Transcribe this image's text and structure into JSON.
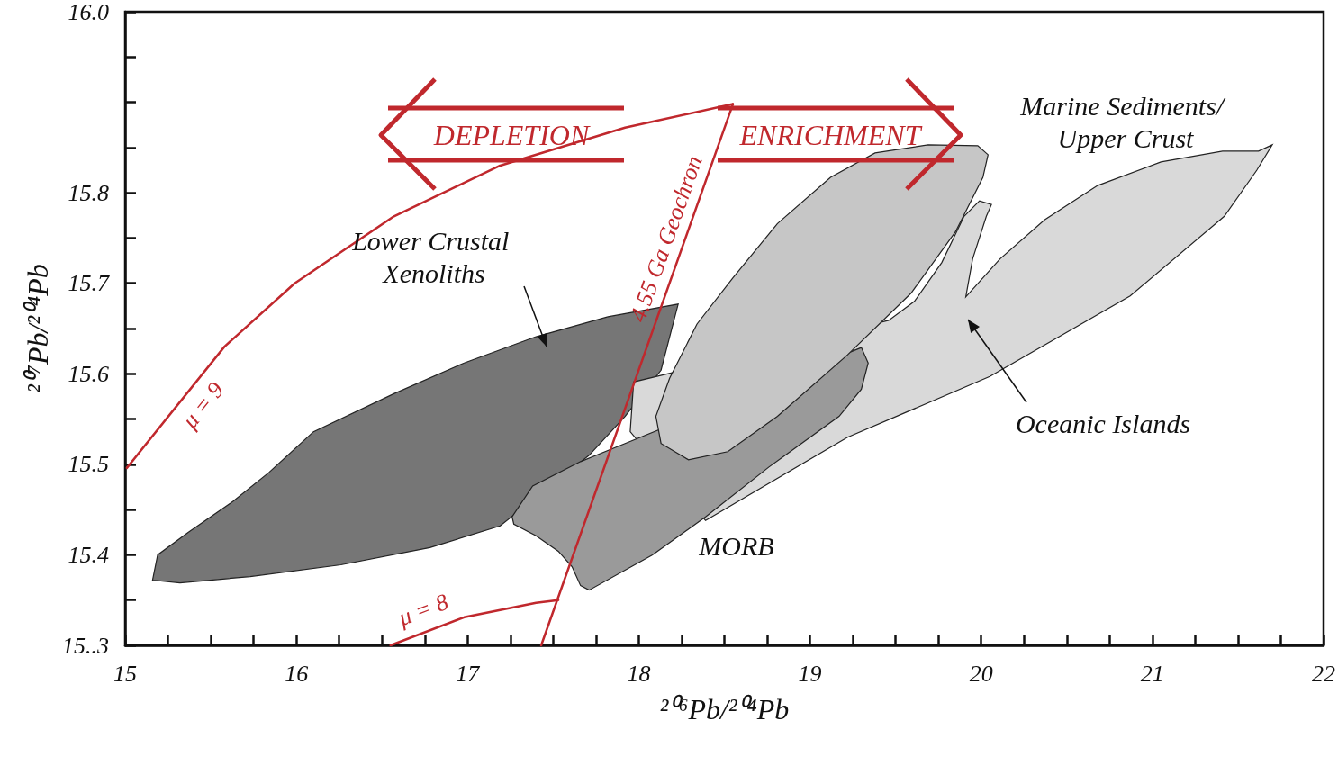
{
  "chart_data": {
    "type": "area",
    "xlabel": "²⁰⁶Pb/²⁰⁴Pb",
    "ylabel": "²⁰⁷Pb/²⁰⁴Pb",
    "xlim": [
      15,
      22
    ],
    "ylim": [
      15.3,
      16.0
    ],
    "xticks": [
      15,
      {
        "value": 15.25,
        "label": null
      },
      {
        "value": 15.5,
        "label": null
      },
      {
        "value": 15.75,
        "label": null
      },
      16,
      {
        "value": 16.25,
        "label": null
      },
      {
        "value": 16.5,
        "label": null
      },
      {
        "value": 16.75,
        "label": null
      },
      17,
      {
        "value": 17.25,
        "label": null
      },
      {
        "value": 17.5,
        "label": null
      },
      {
        "value": 17.75,
        "label": null
      },
      18,
      {
        "value": 18.25,
        "label": null
      },
      {
        "value": 18.5,
        "label": null
      },
      {
        "value": 18.75,
        "label": null
      },
      19,
      {
        "value": 19.25,
        "label": null
      },
      {
        "value": 19.5,
        "label": null
      },
      {
        "value": 19.75,
        "label": null
      },
      20,
      {
        "value": 20.25,
        "label": null
      },
      {
        "value": 20.5,
        "label": null
      },
      {
        "value": 20.75,
        "label": null
      },
      21,
      {
        "value": 21.25,
        "label": null
      },
      {
        "value": 21.5,
        "label": null
      },
      {
        "value": 21.75,
        "label": null
      },
      22
    ],
    "yticks": [
      {
        "value": 15.3,
        "label": "15..3"
      },
      {
        "value": 15.35,
        "label": null
      },
      15.4,
      {
        "value": 15.45,
        "label": null
      },
      15.5,
      {
        "value": 15.55,
        "label": null
      },
      15.6,
      {
        "value": 15.65,
        "label": null
      },
      15.7,
      {
        "value": 15.75,
        "label": null
      },
      15.8,
      {
        "value": 15.85,
        "label": null
      },
      {
        "value": 15.9,
        "label": null
      },
      {
        "value": 15.95,
        "label": null
      },
      {
        "value": 16.0,
        "label": "16.0"
      }
    ],
    "annotations": [
      "DEPLETION",
      "ENRICHMENT"
    ],
    "series": [
      {
        "name": "Lower Crustal Xenoliths",
        "color": "#767676",
        "x": [
          15.16,
          15.19,
          15.37,
          15.63,
          15.84,
          16.1,
          16.57,
          16.98,
          17.4,
          17.82,
          18.23,
          18.13,
          17.92,
          17.71,
          17.19,
          16.78,
          16.26,
          15.73,
          15.32
        ],
        "values": [
          15.372,
          15.4,
          15.425,
          15.459,
          15.491,
          15.536,
          15.578,
          15.612,
          15.641,
          15.663,
          15.677,
          15.604,
          15.553,
          15.51,
          15.432,
          15.408,
          15.389,
          15.376,
          15.369
        ]
      },
      {
        "name": "Oceanic Islands",
        "color": "#d9d9d9",
        "x": [
          21.7,
          21.62,
          21.41,
          21.05,
          20.68,
          20.37,
          20.11,
          19.91,
          19.95,
          20.03,
          20.06,
          19.99,
          19.9,
          19.77,
          19.61,
          19.46,
          17.97,
          17.95,
          18.39,
          19.22,
          20.05,
          20.87,
          21.42,
          21.61
        ],
        "values": [
          15.853,
          15.846,
          15.846,
          15.834,
          15.808,
          15.77,
          15.727,
          15.685,
          15.727,
          15.774,
          15.787,
          15.791,
          15.774,
          15.723,
          15.68,
          15.659,
          15.591,
          15.536,
          15.438,
          15.53,
          15.597,
          15.686,
          15.774,
          15.825
        ]
      },
      {
        "name": "MORB",
        "color": "#9a9a9a",
        "x": [
          17.26,
          17.38,
          17.66,
          17.92,
          19.3,
          19.34,
          19.3,
          19.17,
          18.76,
          18.39,
          18.08,
          17.71,
          17.66,
          17.61,
          17.53,
          17.4,
          17.27
        ],
        "values": [
          15.442,
          15.476,
          15.503,
          15.523,
          15.629,
          15.612,
          15.583,
          15.553,
          15.497,
          15.442,
          15.4,
          15.361,
          15.366,
          15.387,
          15.404,
          15.421,
          15.434
        ]
      },
      {
        "name": "Marine Sediments/ Upper Crust",
        "color": "#c6c6c6",
        "x": [
          19.98,
          19.69,
          19.38,
          19.12,
          18.81,
          18.55,
          18.34,
          18.18,
          18.1,
          18.13,
          18.29,
          18.52,
          18.81,
          19.22,
          19.59,
          19.85,
          20.01,
          20.04
        ],
        "values": [
          15.852,
          15.853,
          15.844,
          15.817,
          15.766,
          15.706,
          15.655,
          15.595,
          15.553,
          15.523,
          15.505,
          15.514,
          15.553,
          15.621,
          15.689,
          15.757,
          15.817,
          15.842
        ]
      },
      {
        "name": "μ = 9",
        "type": "line",
        "color": "#c0282d",
        "x": [
          15.01,
          15.58,
          15.99,
          16.57,
          17.19,
          17.92,
          18.55
        ],
        "values": [
          15.496,
          15.63,
          15.7,
          15.774,
          15.83,
          15.872,
          15.898
        ]
      },
      {
        "name": "4.55 Ga Geochron",
        "type": "line",
        "color": "#c0282d",
        "x": [
          17.43,
          18.55
        ],
        "values": [
          15.3,
          15.898
        ]
      },
      {
        "name": "μ = 8",
        "type": "line",
        "color": "#c0282d",
        "x": [
          16.55,
          16.98,
          17.4,
          17.53
        ],
        "values": [
          15.3,
          15.331,
          15.347,
          15.35
        ]
      }
    ]
  }
}
